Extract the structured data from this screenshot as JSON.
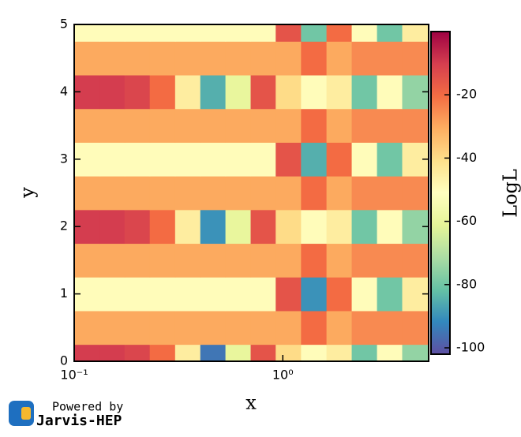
{
  "chart_data": {
    "type": "heatmap",
    "x_label": "x",
    "y_label": "y",
    "colorbar_label": "LogL",
    "xscale": "log",
    "xlim": [
      0.1,
      5
    ],
    "xticks": [
      {
        "value": 0.1,
        "label": "10⁻¹"
      },
      {
        "value": 1,
        "label": "10⁰"
      }
    ],
    "ylim": [
      0,
      5
    ],
    "yticks": [
      0,
      1,
      2,
      3,
      4,
      5
    ],
    "zlim": [
      -102,
      0
    ],
    "zticks": [
      -20,
      -40,
      -60,
      -80,
      -100
    ],
    "colormap": [
      "#5e4fa2",
      "#3288bd",
      "#66c2a5",
      "#abdda4",
      "#e6f598",
      "#ffffbf",
      "#fee08b",
      "#fdae61",
      "#f46d43",
      "#d53e4f",
      "#9e0142"
    ],
    "x": [
      0.115,
      0.152,
      0.2,
      0.265,
      0.35,
      0.462,
      0.61,
      0.806,
      1.06,
      1.41,
      1.86,
      2.46,
      3.25,
      4.29
    ],
    "y": [
      0,
      0.5,
      1,
      1.5,
      2,
      2.5,
      3,
      3.5,
      4,
      4.5,
      5
    ],
    "z": [
      [
        -10,
        -10,
        -12,
        -20,
        -45,
        -95,
        -60,
        -15,
        -40,
        -50,
        -45,
        -80,
        -50,
        -75
      ],
      [
        -30,
        -30,
        -30,
        -30,
        -30,
        -30,
        -30,
        -30,
        -30,
        -20,
        -30,
        -25,
        -25,
        -25
      ],
      [
        -50,
        -50,
        -50,
        -50,
        -50,
        -50,
        -50,
        -50,
        -15,
        -90,
        -20,
        -50,
        -80,
        -45
      ],
      [
        -30,
        -30,
        -30,
        -30,
        -30,
        -30,
        -30,
        -30,
        -30,
        -20,
        -30,
        -25,
        -25,
        -25
      ],
      [
        -10,
        -10,
        -12,
        -20,
        -45,
        -90,
        -60,
        -15,
        -40,
        -50,
        -45,
        -80,
        -50,
        -75
      ],
      [
        -30,
        -30,
        -30,
        -30,
        -30,
        -30,
        -30,
        -30,
        -30,
        -20,
        -30,
        -25,
        -25,
        -25
      ],
      [
        -50,
        -50,
        -50,
        -50,
        -50,
        -50,
        -50,
        -50,
        -15,
        -85,
        -20,
        -50,
        -80,
        -45
      ],
      [
        -30,
        -30,
        -30,
        -30,
        -30,
        -30,
        -30,
        -30,
        -30,
        -20,
        -30,
        -25,
        -25,
        -25
      ],
      [
        -10,
        -10,
        -12,
        -20,
        -45,
        -85,
        -60,
        -15,
        -40,
        -50,
        -45,
        -80,
        -50,
        -75
      ],
      [
        -30,
        -30,
        -30,
        -30,
        -30,
        -30,
        -30,
        -30,
        -30,
        -20,
        -30,
        -25,
        -25,
        -25
      ],
      [
        -50,
        -50,
        -50,
        -50,
        -50,
        -50,
        -50,
        -50,
        -15,
        -80,
        -20,
        -50,
        -80,
        -45
      ]
    ]
  },
  "footer": {
    "powered": "Powered by",
    "brand": "Jarvis-HEP"
  }
}
